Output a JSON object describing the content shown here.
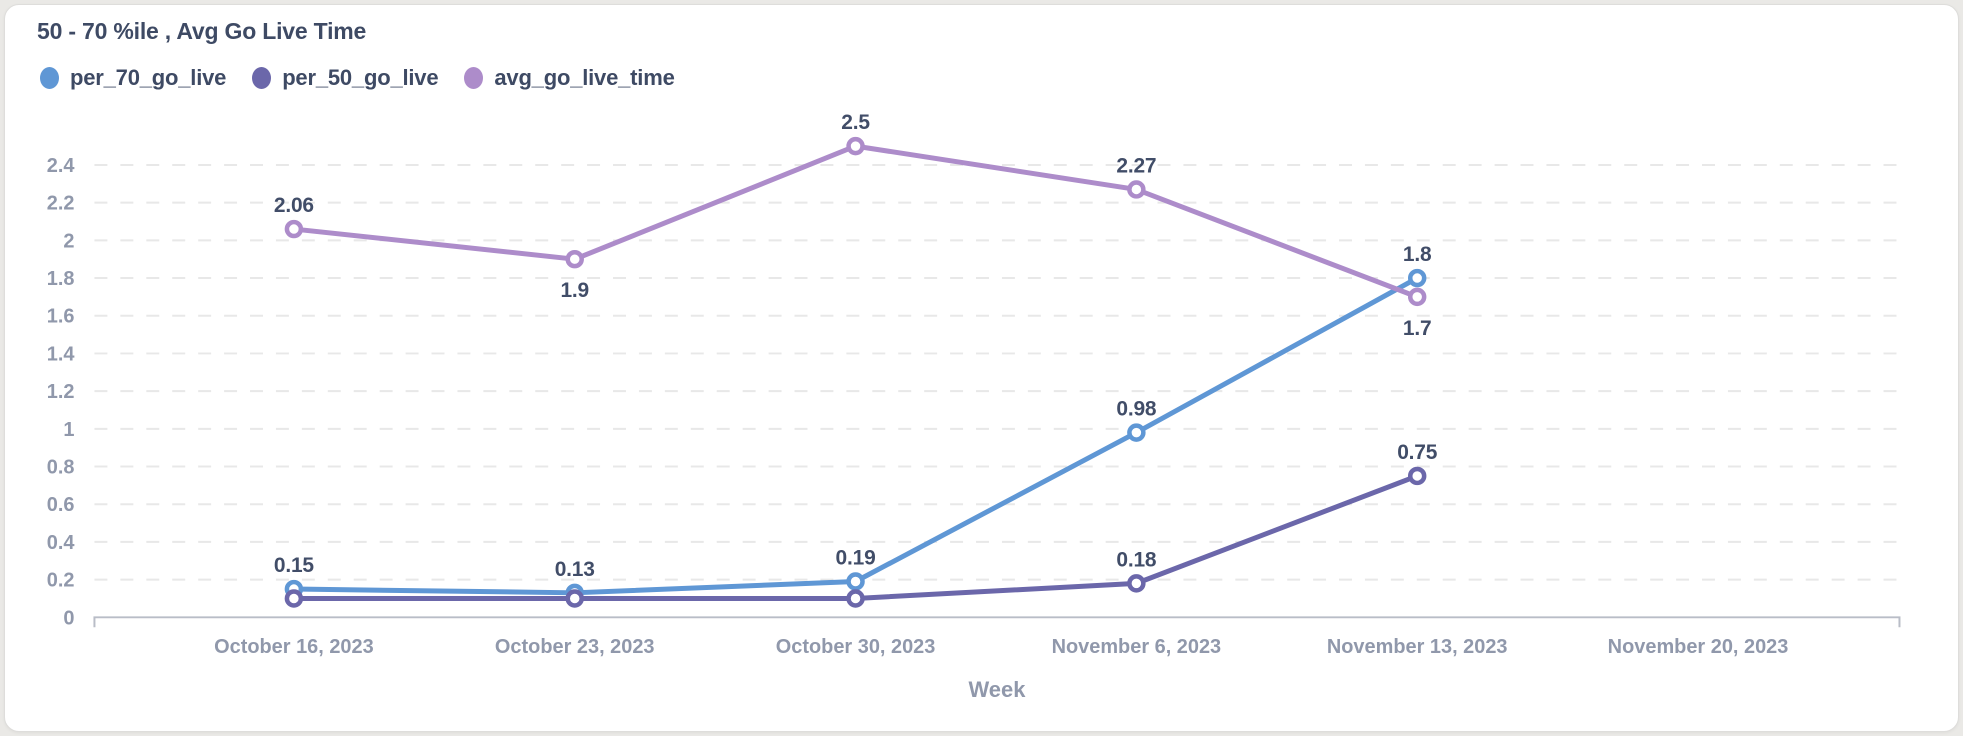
{
  "chart_data": {
    "type": "line",
    "title": "50 - 70 %ile , Avg Go Live Time",
    "xlabel": "Week",
    "x": [
      "October 16, 2023",
      "October 23, 2023",
      "October 30, 2023",
      "November 6, 2023",
      "November 13, 2023",
      "November 20, 2023"
    ],
    "ylim": [
      0,
      2.6
    ],
    "yticks": [
      0,
      0.2,
      0.4,
      0.6,
      0.8,
      1,
      1.2,
      1.4,
      1.6,
      1.8,
      2,
      2.2,
      2.4
    ],
    "ytick_labels": [
      "0",
      "0.2",
      "0.4",
      "0.6",
      "0.8",
      "1",
      "1.2",
      "1.4",
      "1.6",
      "1.8",
      "2",
      "2.2",
      "2.4"
    ],
    "grid": "horizontal-dashed",
    "legend_position": "top-left",
    "series": [
      {
        "name": "per_70_go_live",
        "color": "#5f97d5",
        "values": [
          0.15,
          0.13,
          0.19,
          0.98,
          1.8,
          null
        ],
        "point_labels": [
          "0.15",
          "0.13",
          "0.19",
          "0.98",
          "1.8",
          null
        ],
        "label_side": [
          "above",
          "above",
          "above",
          "above",
          "above",
          null
        ]
      },
      {
        "name": "per_50_go_live",
        "color": "#6b67aa",
        "values": [
          0.1,
          0.1,
          0.1,
          0.18,
          0.75,
          null
        ],
        "point_labels": [
          null,
          null,
          null,
          "0.18",
          "0.75",
          null
        ],
        "label_side": [
          null,
          null,
          null,
          "above",
          "above",
          null
        ]
      },
      {
        "name": "avg_go_live_time",
        "color": "#ad8cca",
        "values": [
          2.06,
          1.9,
          2.5,
          2.27,
          1.7,
          null
        ],
        "point_labels": [
          "2.06",
          "1.9",
          "2.5",
          "2.27",
          "1.7",
          null
        ],
        "label_side": [
          "above",
          "below",
          "above",
          "above",
          "below",
          null
        ]
      }
    ],
    "colors": {
      "title_text": "#3e4a64",
      "axis_text": "#9098ab",
      "data_label_text": "#414d68",
      "gridline": "#e8e8e8",
      "axis_line": "#b9bdc7",
      "card_background": "#ffffff",
      "page_background": "#eae9e6"
    }
  }
}
